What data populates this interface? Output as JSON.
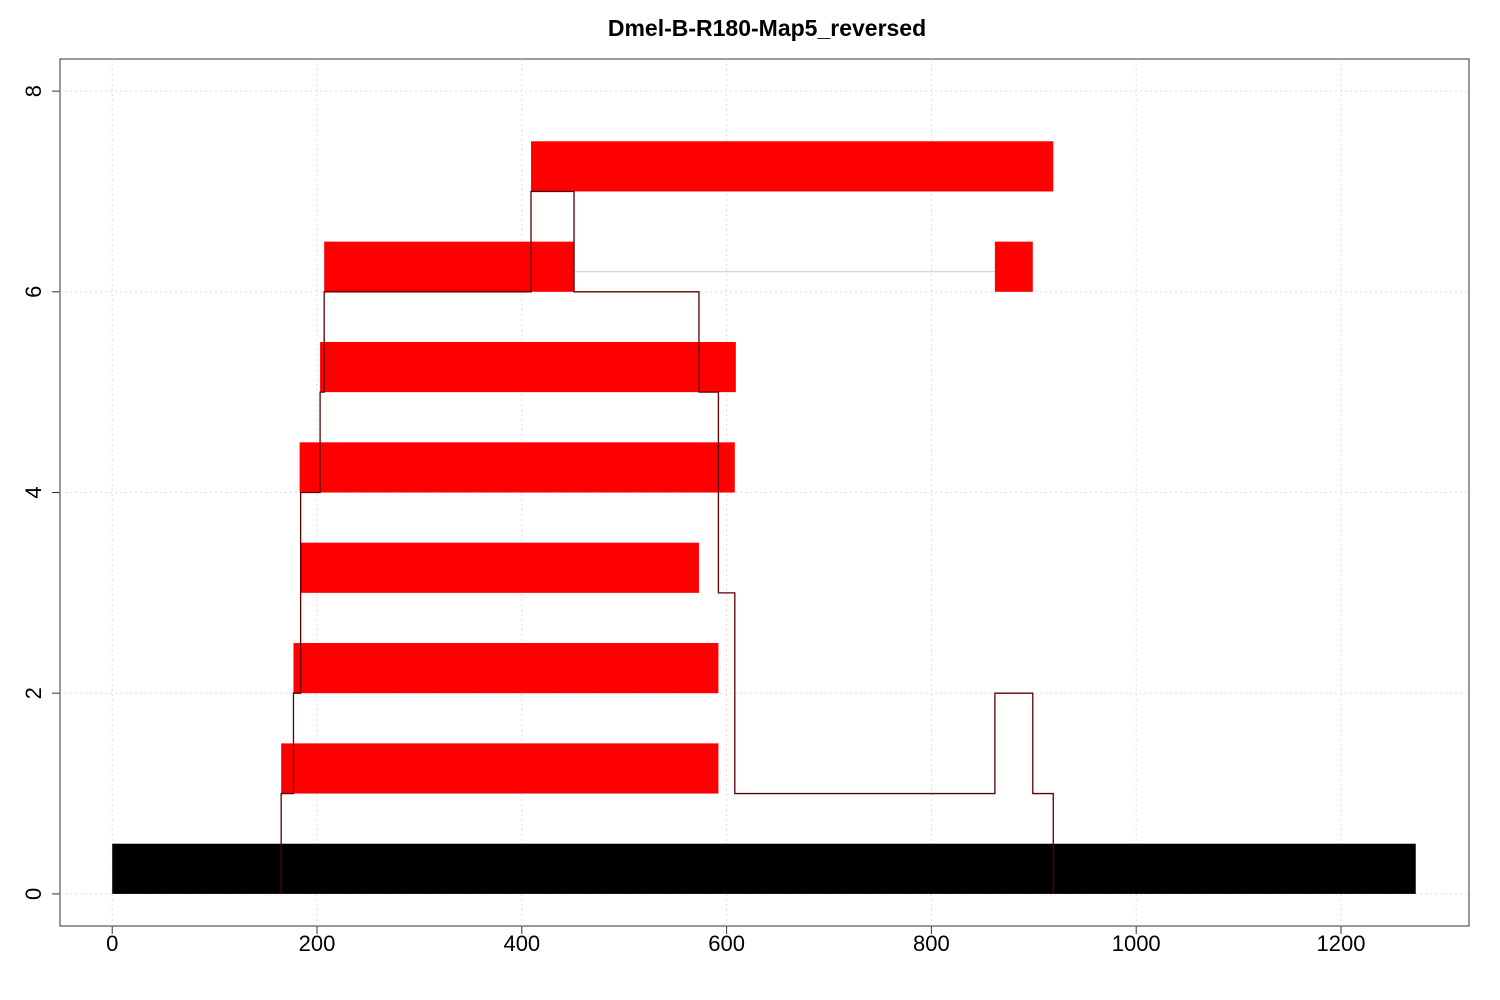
{
  "chart_data": {
    "type": "alignment",
    "title": "Dmel-B-R180-Map5_reversed",
    "xlim": [
      -51,
      1325
    ],
    "ylim": [
      -0.32,
      8.32
    ],
    "xticks": [
      0,
      200,
      400,
      600,
      800,
      1000,
      1200
    ],
    "yticks": [
      0,
      2,
      4,
      6,
      8
    ],
    "grid": true,
    "reference": {
      "y": 0,
      "start": 0,
      "end": 1273,
      "color": "#000000"
    },
    "read_color": "#ff0000",
    "reads": [
      {
        "y": 1,
        "segments": [
          [
            165,
            592
          ]
        ]
      },
      {
        "y": 2,
        "segments": [
          [
            177,
            592
          ]
        ]
      },
      {
        "y": 3,
        "segments": [
          [
            184,
            573
          ]
        ]
      },
      {
        "y": 4,
        "segments": [
          [
            183,
            608
          ]
        ]
      },
      {
        "y": 5,
        "segments": [
          [
            203,
            609
          ]
        ]
      },
      {
        "y": 6,
        "segments": [
          [
            207,
            451
          ],
          [
            862,
            899
          ]
        ]
      },
      {
        "y": 7,
        "segments": [
          [
            409,
            919
          ]
        ]
      }
    ],
    "coverage": {
      "color": "#5a0000",
      "x": [
        165,
        165,
        177,
        184,
        203,
        207,
        409,
        451,
        573,
        592,
        608,
        862,
        899,
        919
      ],
      "values": [
        0,
        1,
        2,
        4,
        5,
        6,
        7,
        6,
        5,
        3,
        1,
        2,
        1,
        0
      ]
    }
  }
}
